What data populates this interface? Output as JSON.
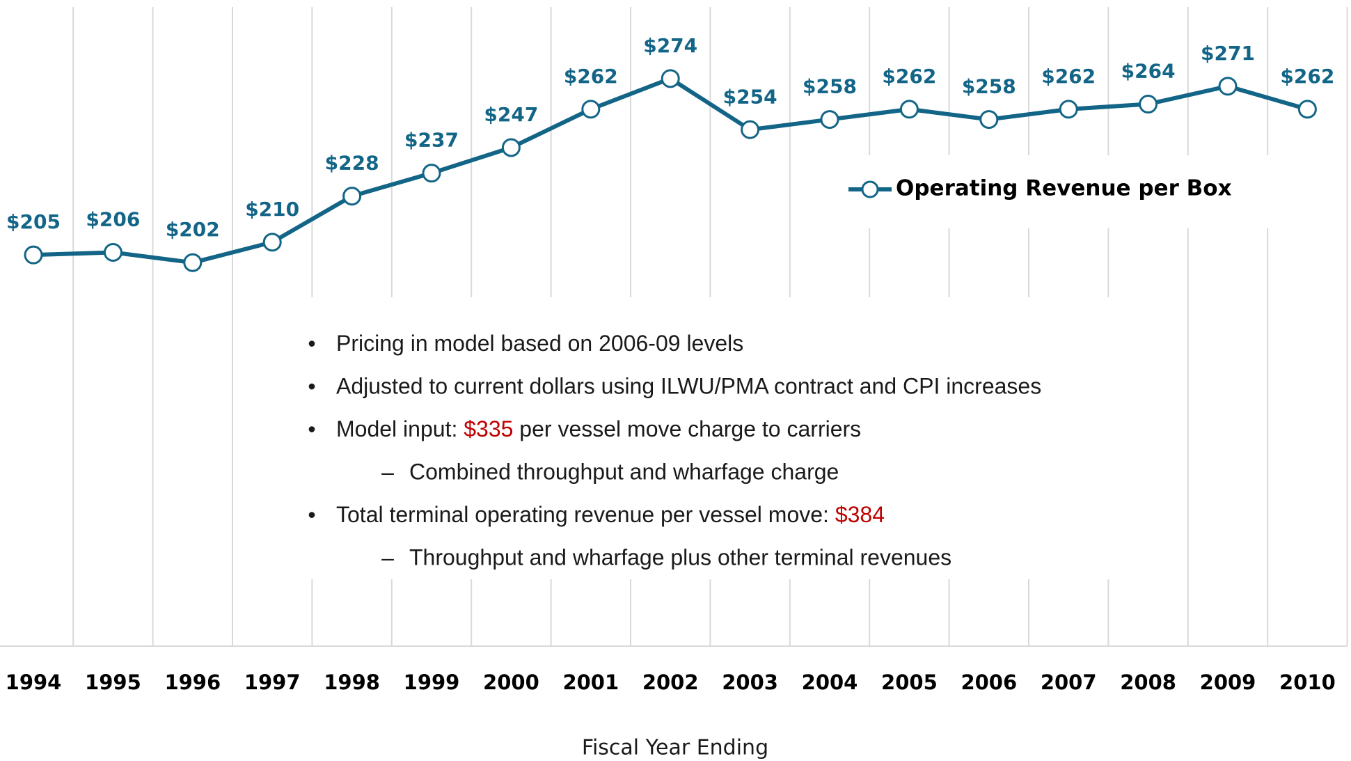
{
  "chart_data": {
    "type": "line",
    "x_label": "Fiscal Year Ending",
    "categories": [
      "1994",
      "1995",
      "1996",
      "1997",
      "1998",
      "1999",
      "2000",
      "2001",
      "2002",
      "2003",
      "2004",
      "2005",
      "2006",
      "2007",
      "2008",
      "2009",
      "2010"
    ],
    "series": [
      {
        "name": "Operating Revenue per Box",
        "color": "#136587",
        "values": [
          205,
          206,
          202,
          210,
          228,
          237,
          247,
          262,
          274,
          254,
          258,
          262,
          258,
          262,
          264,
          271,
          262
        ],
        "value_labels": [
          "$205",
          "$206",
          "$202",
          "$210",
          "$228",
          "$237",
          "$247",
          "$262",
          "$274",
          "$254",
          "$258",
          "$262",
          "$258",
          "$262",
          "$264",
          "$271",
          "$262"
        ]
      }
    ],
    "ylim": [
      52,
      302
    ],
    "grid": true,
    "legend": "upper right",
    "highlight_color": "#c00000",
    "annotations": [
      {
        "level": 1,
        "parts": [
          {
            "text": "Pricing in model based on 2006-09 levels"
          }
        ]
      },
      {
        "level": 1,
        "parts": [
          {
            "text": "Adjusted to current dollars using ILWU/PMA contract and CPI increases"
          }
        ]
      },
      {
        "level": 1,
        "parts": [
          {
            "text": "Model input: "
          },
          {
            "text": "$335",
            "highlight": true
          },
          {
            "text": " per vessel move charge to carriers"
          }
        ]
      },
      {
        "level": 2,
        "parts": [
          {
            "text": "Combined throughput and wharfage charge"
          }
        ]
      },
      {
        "level": 1,
        "parts": [
          {
            "text": "Total terminal operating revenue per vessel move: "
          },
          {
            "text": "$384",
            "highlight": true
          }
        ]
      },
      {
        "level": 2,
        "parts": [
          {
            "text": "Throughput and wharfage plus other terminal revenues"
          }
        ]
      }
    ]
  }
}
